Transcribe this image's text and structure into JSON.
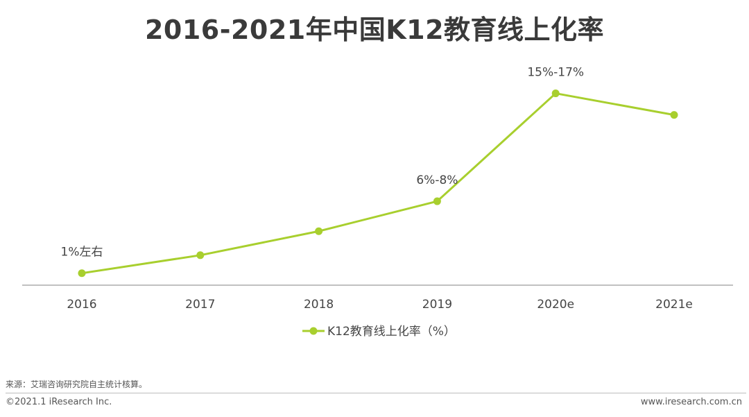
{
  "chart_data": {
    "type": "line",
    "title": "2016-2021年中国K12教育线上化率",
    "categories": [
      "2016",
      "2017",
      "2018",
      "2019",
      "2020e",
      "2021e"
    ],
    "series": [
      {
        "name": "K12教育线上化率（%）",
        "values": [
          1,
          2.5,
          4.5,
          7,
          16,
          14.2
        ],
        "labels": [
          "1%左右",
          "",
          "",
          "6%-8%",
          "15%-17%",
          ""
        ]
      }
    ],
    "xlabel": "",
    "ylabel": "",
    "ylim": [
      0,
      18
    ],
    "grid": false,
    "legend_position": "bottom-center",
    "colors": {
      "line": "#a8cf2e",
      "axis": "#9a9a9a",
      "text": "#444444"
    }
  },
  "footer": {
    "source": "来源：艾瑞咨询研究院自主统计核算。",
    "copyright": "©2021.1 iResearch Inc.",
    "website": "www.iresearch.com.cn"
  }
}
